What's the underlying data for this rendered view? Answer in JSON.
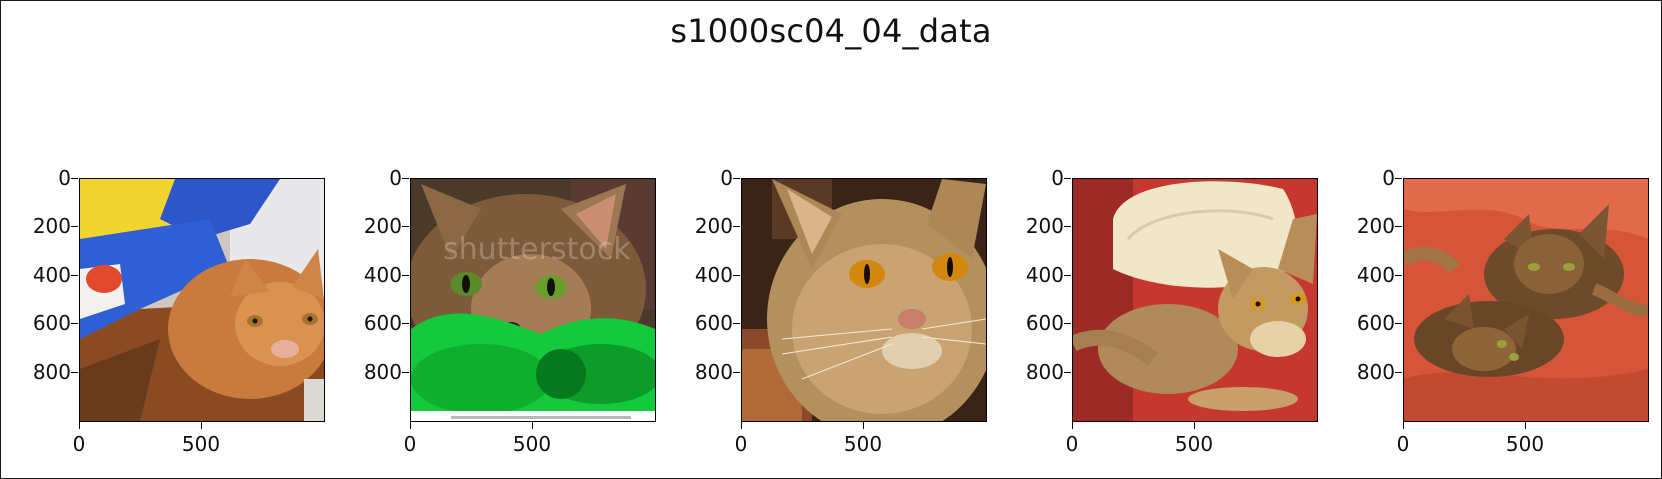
{
  "figure": {
    "title": "s1000sc04_04_data"
  },
  "axis": {
    "y_ticks": [
      "0",
      "200",
      "400",
      "600",
      "800"
    ],
    "x_ticks": [
      "0",
      "500"
    ]
  },
  "panels": [
    {
      "subject": "orange tabby cat lying under a blue and yellow blanket"
    },
    {
      "subject": "green-eyed cat peeking over a green fluffy blanket",
      "watermark": "shutterstock"
    },
    {
      "subject": "close-up of an Abyssinian cat face with orange eyes"
    },
    {
      "subject": "Abyssinian cat lying on a red cushion with a white pillow"
    },
    {
      "subject": "two Abyssinian kittens on an orange-red blanket"
    }
  ]
}
